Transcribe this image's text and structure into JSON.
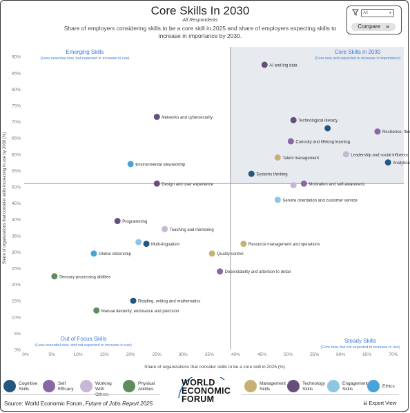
{
  "header": {
    "title": "Core Skills In 2030",
    "subtitle": "All Respondents",
    "description": "Share of employers considering skills to be a core skill in 2025 and share of employers expecting skills to increase in importance by 2030."
  },
  "controls": {
    "filter_value": "All",
    "compare_label": "Compare",
    "export_label": "Export View"
  },
  "quadrants": {
    "top_left": {
      "title": "Emerging Skills",
      "note": "(Less essential now, but expected to increase in use)"
    },
    "top_right": {
      "title": "Core Skills in 2030",
      "note": "(Core now and expected to increase in importance)"
    },
    "bottom_left": {
      "title": "Out of Focus Skills",
      "note": "(Less essential now, and not expected to increase in use)"
    },
    "bottom_right": {
      "title": "Steady Skills",
      "note": "(Core now, but not expected to increase in use)"
    }
  },
  "colors": {
    "cognitive": "#23577f",
    "self_efficacy": "#8966a6",
    "working_with_others": "#c7b6d6",
    "physical": "#5e8c5d",
    "management": "#c6b074",
    "technology": "#674f7c",
    "engagement": "#8cc6e3",
    "ethics": "#4aa3d6",
    "quadrant_fill": "#e7ebef",
    "label_blue": "#3a7bd5"
  },
  "legend": [
    {
      "key": "cognitive",
      "label": "Cognitive Skills",
      "lines": [
        "Cognitive",
        "Skills"
      ]
    },
    {
      "key": "self_efficacy",
      "label": "Self Efficacy",
      "lines": [
        "Self",
        "Efficacy"
      ]
    },
    {
      "key": "working_with_others",
      "label": "Working With Others",
      "lines": [
        "Working With",
        "Others"
      ]
    },
    {
      "key": "physical",
      "label": "Physical Abilities",
      "lines": [
        "Physical",
        "Abilities"
      ]
    },
    {
      "key": "management",
      "label": "Management Skills",
      "lines": [
        "Management",
        "Skills"
      ]
    },
    {
      "key": "technology",
      "label": "Technology Skills",
      "lines": [
        "Technology",
        "Skills"
      ]
    },
    {
      "key": "engagement",
      "label": "Engagement Skills",
      "lines": [
        "Engagement",
        "Skills"
      ]
    },
    {
      "key": "ethics",
      "label": "Ethics",
      "lines": [
        "Ethics"
      ]
    }
  ],
  "logo": {
    "lines": [
      "WORLD",
      "ECONOMIC",
      "FORUM"
    ]
  },
  "source": {
    "prefix": "Source:  World Economic Forum, ",
    "report": "Future of Jobs Report 2025"
  },
  "chart_data": {
    "type": "scatter",
    "xlabel": "Share of organizations that consider skills to be a core skill in 2025 (%)",
    "ylabel": "Share of organizations that consider skills increasing in use by 2030 (%)",
    "xlim": [
      0,
      72
    ],
    "ylim": [
      0,
      93
    ],
    "x_ticks": [
      0,
      5,
      10,
      15,
      20,
      25,
      30,
      35,
      40,
      45,
      50,
      55,
      60,
      65,
      70
    ],
    "y_ticks": [
      0,
      5,
      10,
      15,
      20,
      25,
      30,
      35,
      40,
      45,
      50,
      55,
      60,
      65,
      70,
      75,
      80,
      85,
      90
    ],
    "x_divider": 39,
    "y_divider": 51,
    "points": [
      {
        "label": "AI and big data",
        "x": 45.5,
        "y": 87.5,
        "cat": "technology"
      },
      {
        "label": "Networks and cybersecurity",
        "x": 25,
        "y": 71.5,
        "cat": "technology"
      },
      {
        "label": "Technological literacy",
        "x": 51,
        "y": 70.5,
        "cat": "technology"
      },
      {
        "label": "",
        "x": 57.5,
        "y": 68,
        "cat": "cognitive"
      },
      {
        "label": "Resilience, flexibility and agility",
        "x": 67,
        "y": 67,
        "cat": "self_efficacy"
      },
      {
        "label": "Curiosity and lifelong learning",
        "x": 50.5,
        "y": 64,
        "cat": "self_efficacy"
      },
      {
        "label": "Leadership and social influence",
        "x": 61,
        "y": 60,
        "cat": "working_with_others"
      },
      {
        "label": "Talent management",
        "x": 48,
        "y": 59,
        "cat": "management"
      },
      {
        "label": "Analytical thinking",
        "x": 69,
        "y": 57.5,
        "cat": "cognitive"
      },
      {
        "label": "Environmental stewardship",
        "x": 20,
        "y": 57,
        "cat": "ethics"
      },
      {
        "label": "Systems thinking",
        "x": 43,
        "y": 54,
        "cat": "cognitive"
      },
      {
        "label": "Design and user experience",
        "x": 25,
        "y": 51,
        "cat": "technology"
      },
      {
        "label": "Motivation and self-awareness",
        "x": 53,
        "y": 51,
        "cat": "self_efficacy"
      },
      {
        "label": "",
        "x": 51,
        "y": 50.5,
        "cat": "working_with_others"
      },
      {
        "label": "Service orientation and customer service",
        "x": 48,
        "y": 46,
        "cat": "engagement"
      },
      {
        "label": "Programming",
        "x": 17.5,
        "y": 39.5,
        "cat": "technology"
      },
      {
        "label": "Teaching and mentoring",
        "x": 26.5,
        "y": 37,
        "cat": "working_with_others"
      },
      {
        "label": "",
        "x": 21.5,
        "y": 33,
        "cat": "engagement"
      },
      {
        "label": "Multi-lingualism",
        "x": 23,
        "y": 32.5,
        "cat": "cognitive"
      },
      {
        "label": "Resource management and operations",
        "x": 41.5,
        "y": 32.5,
        "cat": "management"
      },
      {
        "label": "Global citizenship",
        "x": 13,
        "y": 29.5,
        "cat": "ethics"
      },
      {
        "label": "Quality control",
        "x": 35.5,
        "y": 29.5,
        "cat": "management"
      },
      {
        "label": "Sensory-processing abilities",
        "x": 5.5,
        "y": 22.5,
        "cat": "physical"
      },
      {
        "label": "Dependability and attention to detail",
        "x": 37,
        "y": 24,
        "cat": "self_efficacy"
      },
      {
        "label": "Reading, writing and mathematics",
        "x": 20.5,
        "y": 15,
        "cat": "cognitive"
      },
      {
        "label": "Manual dexterity, endurance and precision",
        "x": 13.5,
        "y": 12,
        "cat": "physical"
      }
    ]
  }
}
